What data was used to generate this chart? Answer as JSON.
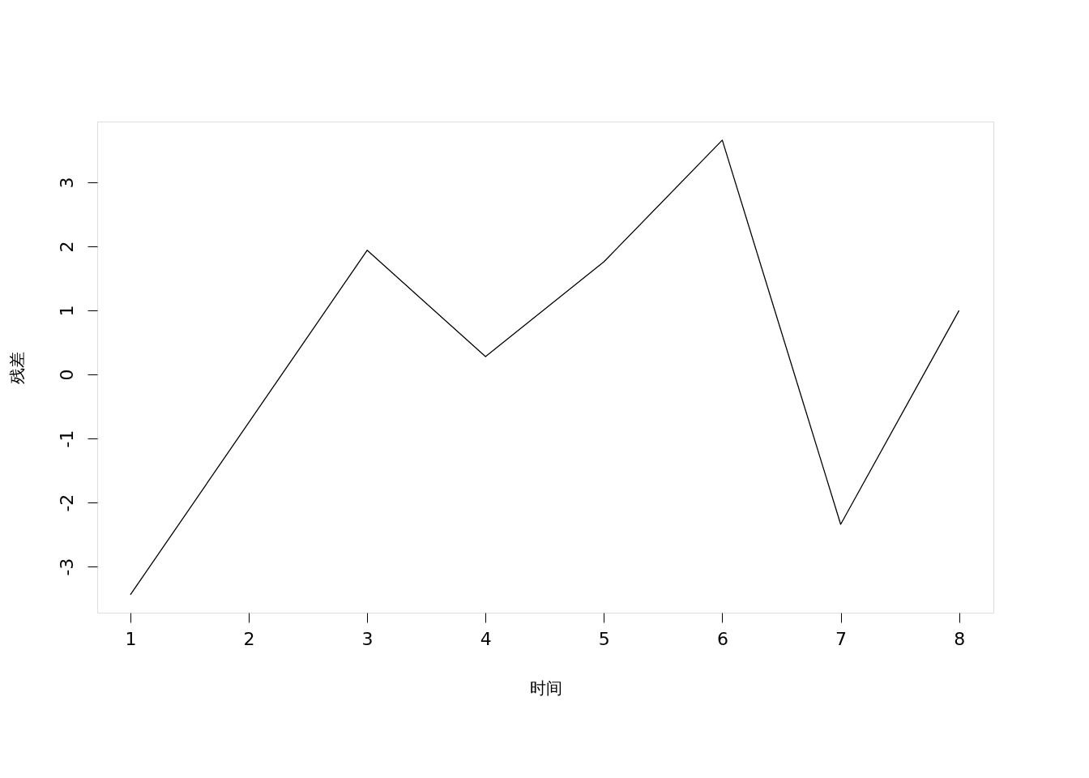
{
  "chart_data": {
    "type": "line",
    "xlabel": "时间",
    "ylabel": "残差",
    "x": [
      1,
      2,
      3,
      4,
      5,
      6,
      7,
      8
    ],
    "series": [
      {
        "color": "#000000",
        "values": [
          -3.44,
          -0.75,
          1.94,
          0.28,
          1.76,
          3.66,
          -2.34,
          1.0
        ]
      }
    ],
    "xlim": [
      0.72,
      8.29
    ],
    "ylim": [
      -3.72,
      3.95
    ],
    "xticks": [
      1,
      2,
      3,
      4,
      5,
      6,
      7,
      8
    ],
    "yticks": [
      -3,
      -2,
      -1,
      0,
      1,
      2,
      3
    ],
    "grid": false,
    "marker": "none",
    "line_style": "solid"
  }
}
